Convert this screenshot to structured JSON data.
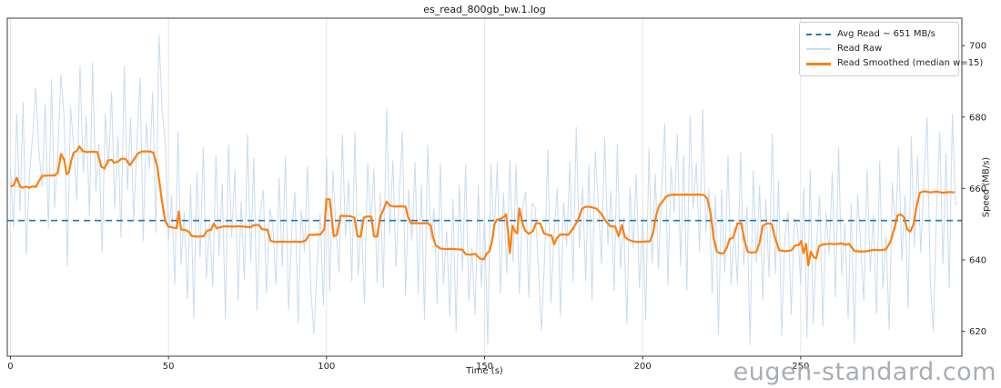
{
  "title": "es_read_800gb_bw.1.log",
  "watermark": "eugen-standard.com",
  "axes": {
    "xlabel": "Time (s)",
    "ylabel": "Speed (MB/s)"
  },
  "legend": {
    "position": "upper-right",
    "items": [
      {
        "label": "Avg Read ~ 651 MB/s",
        "style": "dashed",
        "color": "#1f77b4"
      },
      {
        "label": "Read Raw",
        "style": "solid-thin",
        "color": "#c9dcee"
      },
      {
        "label": "Read Smoothed (median w=15)",
        "style": "solid-thick",
        "color": "#ff7f0e"
      }
    ]
  },
  "chart_data": {
    "type": "line",
    "title": "es_read_800gb_bw.1.log",
    "xlabel": "Time (s)",
    "ylabel": "Speed (MB/s)",
    "xlim": [
      -1,
      301
    ],
    "ylim": [
      613,
      707.7
    ],
    "x_ticks": [
      0,
      50,
      100,
      150,
      200,
      250
    ],
    "y_ticks": [
      620,
      640,
      660,
      680,
      700
    ],
    "grid": "vertical-only",
    "grid_color": "#e6e6e6",
    "spine_color": "#3c3c3c",
    "text_color": "#262626",
    "avg_value": 651,
    "series": [
      {
        "name": "Avg Read ~ 651 MB/s",
        "type": "hline",
        "value": 651,
        "color": "#1f77b4",
        "dash": [
          7,
          5
        ],
        "width": 1.6
      },
      {
        "name": "Read Raw",
        "type": "noisy-line",
        "color": "#c9dcee",
        "width": 1,
        "t_start": 0,
        "t_end": 299,
        "step": 1,
        "clip": [
          616,
          703.5
        ],
        "offsets": [
          5,
          -12,
          18,
          -7,
          24,
          -19,
          3,
          14,
          -23,
          9,
          -3,
          20,
          -15,
          27,
          -9,
          6,
          -21,
          12,
          -26,
          16,
          2,
          -14,
          23,
          -6,
          10,
          -18,
          25,
          -11,
          4,
          -24,
          15,
          -2,
          19,
          -13,
          7,
          -22,
          26,
          -8,
          13,
          -17,
          3,
          21,
          -25,
          8,
          -5,
          17,
          -20,
          11,
          -27,
          22,
          -4,
          9,
          -16,
          24,
          -10,
          5,
          -19,
          14,
          -23,
          18,
          -6,
          25,
          -13,
          2,
          -17,
          20,
          -8,
          12,
          -26,
          23,
          -3,
          16,
          -21,
          7,
          -15,
          26,
          -10,
          19,
          -24,
          4,
          11,
          -18,
          8
        ],
        "overrides": {
          "8": 688,
          "16": 692,
          "47": 703,
          "48": 682,
          "96": 619,
          "168": 620,
          "252": 618,
          "292": 620
        }
      },
      {
        "name": "Read Smoothed (median w=15)",
        "type": "line",
        "color": "#ff7f0e",
        "width": 2.2,
        "points": [
          [
            0,
            660.6
          ],
          [
            1,
            660.8
          ],
          [
            2,
            663
          ],
          [
            3,
            660.6
          ],
          [
            4,
            660.2
          ],
          [
            5,
            660.5
          ],
          [
            6,
            660.2
          ],
          [
            7,
            660.6
          ],
          [
            8,
            660.4
          ],
          [
            9,
            662
          ],
          [
            10,
            663.5
          ],
          [
            12,
            663.6
          ],
          [
            14,
            663.6
          ],
          [
            15,
            664.5
          ],
          [
            16,
            669.7
          ],
          [
            17,
            668
          ],
          [
            17.8,
            664
          ],
          [
            18.5,
            664.5
          ],
          [
            19.3,
            668
          ],
          [
            20,
            670
          ],
          [
            21,
            670.5
          ],
          [
            21.8,
            671.8
          ],
          [
            22.8,
            670.5
          ],
          [
            24,
            670.2
          ],
          [
            26,
            670.3
          ],
          [
            27.5,
            670.2
          ],
          [
            28.8,
            666
          ],
          [
            29.8,
            665.6
          ],
          [
            30.8,
            667.8
          ],
          [
            32,
            668
          ],
          [
            32.8,
            667.2
          ],
          [
            34,
            667.5
          ],
          [
            35.3,
            668.4
          ],
          [
            36.5,
            668.2
          ],
          [
            37.8,
            666.5
          ],
          [
            39,
            668
          ],
          [
            40.3,
            669.8
          ],
          [
            41.5,
            670.3
          ],
          [
            43,
            670.4
          ],
          [
            44.5,
            670.3
          ],
          [
            45.2,
            670
          ],
          [
            46.5,
            666
          ],
          [
            48,
            656
          ],
          [
            49,
            650.8
          ],
          [
            50,
            649.3
          ],
          [
            51.5,
            649
          ],
          [
            52.6,
            648.9
          ],
          [
            53.2,
            653.5
          ],
          [
            54,
            648.5
          ],
          [
            55.5,
            648.3
          ],
          [
            56.5,
            647.8
          ],
          [
            57.3,
            646.7
          ],
          [
            59,
            646.5
          ],
          [
            61,
            646.6
          ],
          [
            62.3,
            648.2
          ],
          [
            63.5,
            648.4
          ],
          [
            64.3,
            650.2
          ],
          [
            65.3,
            648.8
          ],
          [
            66.5,
            649.2
          ],
          [
            68,
            649.4
          ],
          [
            70,
            649.3
          ],
          [
            72,
            649.4
          ],
          [
            74,
            649.3
          ],
          [
            75.8,
            649.1
          ],
          [
            77,
            649.7
          ],
          [
            78.5,
            649.8
          ],
          [
            79.6,
            648.6
          ],
          [
            81.3,
            648.4
          ],
          [
            82.3,
            645.3
          ],
          [
            84,
            645
          ],
          [
            86,
            645.1
          ],
          [
            88,
            645
          ],
          [
            90,
            645.1
          ],
          [
            92,
            645
          ],
          [
            93.4,
            645.4
          ],
          [
            94.5,
            647
          ],
          [
            96,
            647
          ],
          [
            98,
            647.1
          ],
          [
            99.3,
            648.5
          ],
          [
            100,
            657
          ],
          [
            101,
            657
          ],
          [
            102.3,
            646.6
          ],
          [
            103.3,
            647
          ],
          [
            104.4,
            652.3
          ],
          [
            105.5,
            652.3
          ],
          [
            107.5,
            652.2
          ],
          [
            108.8,
            651.8
          ],
          [
            109.8,
            646.6
          ],
          [
            110.8,
            646.5
          ],
          [
            111.8,
            651.8
          ],
          [
            113,
            652.2
          ],
          [
            114.2,
            652
          ],
          [
            115,
            646.6
          ],
          [
            116,
            646.5
          ],
          [
            117,
            652
          ],
          [
            118,
            654
          ],
          [
            119,
            656.3
          ],
          [
            120,
            655.2
          ],
          [
            121.5,
            654.9
          ],
          [
            123,
            655
          ],
          [
            125,
            654.9
          ],
          [
            125.8,
            652
          ],
          [
            126.8,
            650.2
          ],
          [
            128,
            650.3
          ],
          [
            130,
            650.2
          ],
          [
            132,
            650.3
          ],
          [
            133,
            649.5
          ],
          [
            133.8,
            646
          ],
          [
            134.6,
            644
          ],
          [
            136,
            643.2
          ],
          [
            137.5,
            643
          ],
          [
            139,
            643.1
          ],
          [
            141,
            643
          ],
          [
            143,
            642.8
          ],
          [
            144,
            641.6
          ],
          [
            145.5,
            641.4
          ],
          [
            147,
            641.7
          ],
          [
            148.5,
            640.4
          ],
          [
            149.7,
            640.1
          ],
          [
            150.7,
            641.8
          ],
          [
            151.5,
            642.3
          ],
          [
            152.3,
            645
          ],
          [
            153.1,
            649.8
          ],
          [
            153.9,
            651.2
          ],
          [
            155,
            651.5
          ],
          [
            156.2,
            652
          ],
          [
            156.8,
            652.8
          ],
          [
            157.5,
            647
          ],
          [
            158,
            641.9
          ],
          [
            158.8,
            649.5
          ],
          [
            159.6,
            648
          ],
          [
            160.3,
            647.4
          ],
          [
            161,
            654.4
          ],
          [
            162,
            650.2
          ],
          [
            162.8,
            648.2
          ],
          [
            164,
            647.3
          ],
          [
            165.3,
            648
          ],
          [
            166.3,
            650.3
          ],
          [
            167.6,
            650.2
          ],
          [
            168.8,
            647.4
          ],
          [
            170,
            647
          ],
          [
            171.2,
            646.8
          ],
          [
            172,
            644.3
          ],
          [
            172.8,
            646
          ],
          [
            173.8,
            647
          ],
          [
            175,
            647.1
          ],
          [
            176.5,
            647
          ],
          [
            178,
            648.8
          ],
          [
            179.5,
            651
          ],
          [
            180.8,
            654.3
          ],
          [
            182,
            654.9
          ],
          [
            183.5,
            654.8
          ],
          [
            185.3,
            654.4
          ],
          [
            186.8,
            653.1
          ],
          [
            188.3,
            650.9
          ],
          [
            189.8,
            649.4
          ],
          [
            191.3,
            649.3
          ],
          [
            192.4,
            646.6
          ],
          [
            193.4,
            649.7
          ],
          [
            194.4,
            646.4
          ],
          [
            195.4,
            645.7
          ],
          [
            196.8,
            645.2
          ],
          [
            198.5,
            645
          ],
          [
            200.5,
            645.1
          ],
          [
            202.3,
            645.2
          ],
          [
            203.3,
            647.5
          ],
          [
            204.3,
            652.5
          ],
          [
            205.3,
            655.3
          ],
          [
            206.3,
            656.3
          ],
          [
            207.3,
            657.6
          ],
          [
            208.5,
            658.1
          ],
          [
            210,
            658.3
          ],
          [
            212,
            658.2
          ],
          [
            214,
            658.3
          ],
          [
            216,
            658.2
          ],
          [
            218,
            658.3
          ],
          [
            219.5,
            658.1
          ],
          [
            220.5,
            657
          ],
          [
            221.5,
            653
          ],
          [
            222.5,
            646
          ],
          [
            223.5,
            642.3
          ],
          [
            224.5,
            641.8
          ],
          [
            225.7,
            641.9
          ],
          [
            226.7,
            643.5
          ],
          [
            227.5,
            645.8
          ],
          [
            228.6,
            646.2
          ],
          [
            229.3,
            648
          ],
          [
            230,
            650.2
          ],
          [
            231.2,
            650.3
          ],
          [
            232.2,
            645.5
          ],
          [
            233.2,
            642.3
          ],
          [
            234.5,
            642
          ],
          [
            236,
            642.2
          ],
          [
            237,
            644.8
          ],
          [
            238,
            649.5
          ],
          [
            239.3,
            650.2
          ],
          [
            240.8,
            650.1
          ],
          [
            241.8,
            646.5
          ],
          [
            243.2,
            642.7
          ],
          [
            245,
            642.4
          ],
          [
            247,
            642.6
          ],
          [
            248.3,
            644
          ],
          [
            249.5,
            644.2
          ],
          [
            250.2,
            645.3
          ],
          [
            250.9,
            641.9
          ],
          [
            251.7,
            644.5
          ],
          [
            252.4,
            638.4
          ],
          [
            253.2,
            642.3
          ],
          [
            254.2,
            640.7
          ],
          [
            254.9,
            640.4
          ],
          [
            255.8,
            643.8
          ],
          [
            257,
            644.3
          ],
          [
            259,
            644.5
          ],
          [
            261,
            644.4
          ],
          [
            263,
            644.6
          ],
          [
            264.3,
            644.2
          ],
          [
            265.3,
            644.5
          ],
          [
            267,
            642.5
          ],
          [
            269,
            642.3
          ],
          [
            271,
            642.4
          ],
          [
            273,
            642.8
          ],
          [
            275,
            642.7
          ],
          [
            277,
            642.9
          ],
          [
            278.5,
            645.2
          ],
          [
            279.7,
            649
          ],
          [
            280.7,
            652.5
          ],
          [
            281.7,
            652.7
          ],
          [
            282.7,
            652
          ],
          [
            283.7,
            648.6
          ],
          [
            284.7,
            647.9
          ],
          [
            285.7,
            650
          ],
          [
            286.7,
            655
          ],
          [
            287.7,
            658.8
          ],
          [
            289,
            659.2
          ],
          [
            291,
            658.9
          ],
          [
            293,
            659.1
          ],
          [
            295,
            658.8
          ],
          [
            297,
            659
          ],
          [
            298.6,
            658.9
          ]
        ]
      }
    ]
  }
}
